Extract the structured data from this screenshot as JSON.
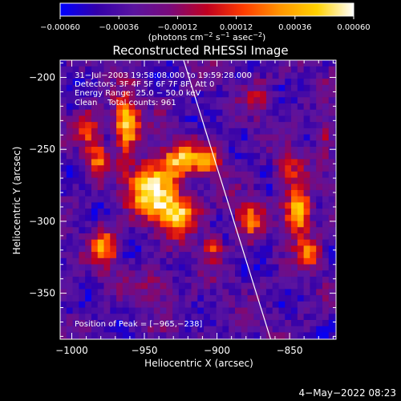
{
  "chart_data": {
    "type": "heatmap",
    "title": "Reconstructed RHESSI Image",
    "xlabel": "Heliocentric X (arcsec)",
    "ylabel": "Heliocentric Y (arcsec)",
    "xlim": [
      -1008,
      -818
    ],
    "ylim": [
      -382,
      -188
    ],
    "x_ticks": [
      -1000,
      -950,
      -900,
      -850
    ],
    "x_tick_labels": [
      "−1000",
      "−950",
      "−900",
      "−850"
    ],
    "y_ticks": [
      -200,
      -250,
      -300,
      -350
    ],
    "y_tick_labels": [
      "−200",
      "−250",
      "−300",
      "−350"
    ],
    "colorbar": {
      "range": [
        -0.0006,
        0.0006
      ],
      "tick_values": [
        -0.0006,
        -0.00036,
        -0.00012,
        0.00012,
        0.00036,
        0.0006
      ],
      "tick_labels": [
        "−0.00060",
        "−0.00036",
        "−0.00012",
        "0.00012",
        "0.00036",
        "0.00060"
      ],
      "unit_label_parts": [
        "(photons cm",
        "−2",
        " s",
        "−1",
        " asec",
        "−2",
        ")"
      ],
      "colors": [
        "#0000ff",
        "#3300aa",
        "#5a14a0",
        "#7a0a7a",
        "#c00020",
        "#ff3c00",
        "#ff9600",
        "#ffd200",
        "#ffffff"
      ]
    },
    "info_lines": [
      "31−Jul−2003 19:58:08.000 to 19:59:28.000",
      "Detectors: 3F 4F 5F 6F 7F 8F, Att 0",
      "Energy Range: 25.0 − 50.0 keV",
      "Clean    Total counts: 961"
    ],
    "peak_label": "Position of Peak = [−965,−238]",
    "limb_line": [
      [
        -923,
        -188
      ],
      [
        -863,
        -382
      ]
    ],
    "emission_sources": [
      {
        "x": -962,
        "y": -232,
        "sx": 6,
        "sy": 12,
        "amp": 1.0
      },
      {
        "x": -945,
        "y": -276,
        "sx": 12,
        "sy": 13,
        "amp": 0.95
      },
      {
        "x": -928,
        "y": -294,
        "sx": 10,
        "sy": 9,
        "amp": 0.9
      },
      {
        "x": -925,
        "y": -257,
        "sx": 9,
        "sy": 8,
        "amp": 0.7
      },
      {
        "x": -905,
        "y": -258,
        "sx": 7,
        "sy": 7,
        "amp": 0.6
      },
      {
        "x": -977,
        "y": -318,
        "sx": 6,
        "sy": 10,
        "amp": 0.65
      },
      {
        "x": -982,
        "y": -258,
        "sx": 5,
        "sy": 9,
        "amp": 0.5
      },
      {
        "x": -903,
        "y": -318,
        "sx": 5,
        "sy": 7,
        "amp": 0.5
      },
      {
        "x": -878,
        "y": -298,
        "sx": 6,
        "sy": 10,
        "amp": 0.55
      },
      {
        "x": -844,
        "y": -293,
        "sx": 6,
        "sy": 12,
        "amp": 0.95
      },
      {
        "x": -836,
        "y": -322,
        "sx": 5,
        "sy": 7,
        "amp": 0.6
      },
      {
        "x": -851,
        "y": -263,
        "sx": 6,
        "sy": 8,
        "amp": 0.45
      },
      {
        "x": -988,
        "y": -236,
        "sx": 5,
        "sy": 10,
        "amp": 0.45
      },
      {
        "x": -940,
        "y": -345,
        "sx": 8,
        "sy": 7,
        "amp": 0.3
      },
      {
        "x": -870,
        "y": -215,
        "sx": 6,
        "sy": 8,
        "amp": 0.3
      },
      {
        "x": -826,
        "y": -240,
        "sx": 4,
        "sy": 10,
        "amp": 0.35
      }
    ]
  },
  "footer": {
    "timestamp": "4−May−2022 08:23"
  }
}
